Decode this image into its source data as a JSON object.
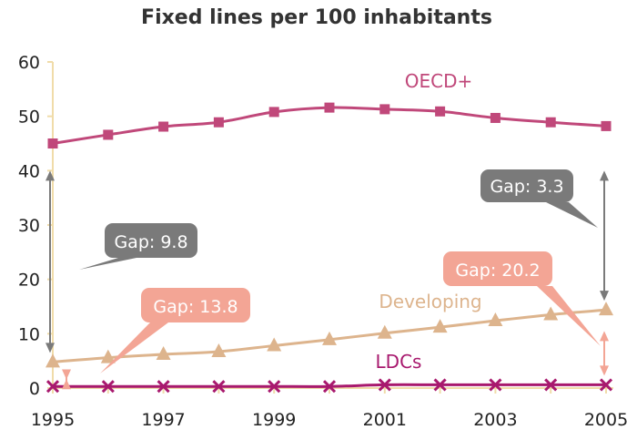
{
  "chart_data": {
    "type": "line",
    "title": "Fixed lines per 100 inhabitants",
    "xlabel": "",
    "ylabel": "",
    "x": [
      1995,
      1996,
      1997,
      1998,
      1999,
      2000,
      2001,
      2002,
      2003,
      2004,
      2005
    ],
    "x_tick_labels": [
      "1995",
      "1997",
      "1999",
      "2001",
      "2003",
      "2005"
    ],
    "y_tick_labels": [
      "0",
      "10",
      "20",
      "30",
      "40",
      "50",
      "60"
    ],
    "ylim": [
      0,
      60
    ],
    "xlim": [
      1995,
      2005
    ],
    "grid": false,
    "series": [
      {
        "name": "OECD+",
        "color": "#c0487a",
        "marker": "square",
        "values": [
          45.0,
          46.6,
          48.1,
          48.9,
          50.8,
          51.6,
          51.3,
          50.9,
          49.7,
          48.9,
          48.2
        ]
      },
      {
        "name": "Developing",
        "color": "#ddb48d",
        "marker": "triangle",
        "values": [
          4.8,
          5.6,
          6.2,
          6.7,
          7.8,
          8.9,
          10.1,
          11.2,
          12.4,
          13.5,
          14.4
        ]
      },
      {
        "name": "LDCs",
        "color": "#a8196e",
        "marker": "x",
        "values": [
          0.3,
          0.3,
          0.3,
          0.3,
          0.3,
          0.3,
          0.6,
          0.6,
          0.6,
          0.6,
          0.6
        ]
      }
    ],
    "annotations": [
      {
        "label": "Gap: 9.8",
        "color": "#7a7a7a",
        "arrow_year": 1995,
        "arrow_from": 4.8,
        "arrow_to": 40.0
      },
      {
        "label": "Gap: 3.3",
        "color": "#7a7a7a",
        "arrow_year": 2005,
        "arrow_from": 14.4,
        "arrow_to": 40.0
      },
      {
        "label": "Gap: 13.8",
        "color": "#f3a595",
        "arrow_year": 1995,
        "arrow_from": 0.3,
        "arrow_to": 1.6
      },
      {
        "label": "Gap: 20.2",
        "color": "#f3a595",
        "arrow_year": 2005,
        "arrow_from": 0.6,
        "arrow_to": 10.5
      }
    ],
    "colors": {
      "axis": "#f0dca9",
      "text": "#222222"
    }
  }
}
